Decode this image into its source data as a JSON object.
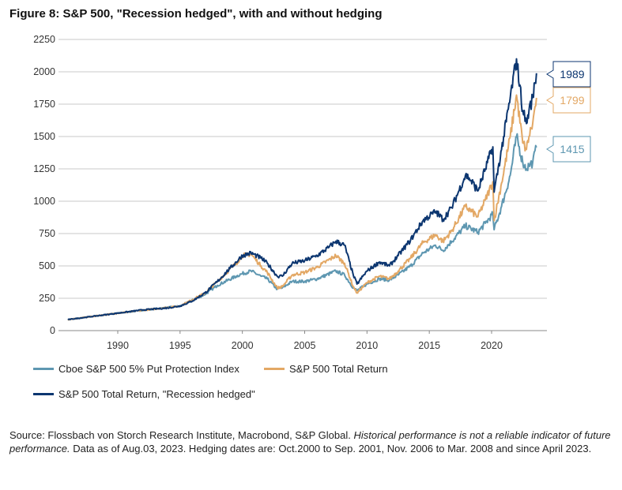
{
  "title": "Figure 8: S&P 500, \"Recession hedged\", with and without hedging",
  "chart_data": {
    "type": "line",
    "title": "Figure 8: S&P 500, \"Recession hedged\", with and without hedging",
    "xlabel": "",
    "ylabel": "",
    "xlim": [
      1986,
      2024.5
    ],
    "ylim": [
      0,
      2250
    ],
    "x_ticks": [
      "1990",
      "1995",
      "2000",
      "2005",
      "2010",
      "2015",
      "2020"
    ],
    "y_ticks": [
      "0",
      "250",
      "500",
      "750",
      "1000",
      "1250",
      "1500",
      "1750",
      "2000",
      "2250"
    ],
    "grid": "horizontal",
    "legend_position": "bottom",
    "series": [
      {
        "name": "S&P 500 Total Return, \"Recession hedged\"",
        "color": "#0c3670",
        "end_label": "1989",
        "points": [
          [
            1986,
            85
          ],
          [
            1988,
            110
          ],
          [
            1990,
            135
          ],
          [
            1992,
            160
          ],
          [
            1994,
            175
          ],
          [
            1995,
            190
          ],
          [
            1996,
            230
          ],
          [
            1997,
            290
          ],
          [
            1998,
            380
          ],
          [
            1999,
            480
          ],
          [
            2000,
            580
          ],
          [
            2000.7,
            600
          ],
          [
            2001.5,
            560
          ],
          [
            2002,
            520
          ],
          [
            2002.8,
            420
          ],
          [
            2003.2,
            420
          ],
          [
            2004,
            520
          ],
          [
            2005,
            540
          ],
          [
            2006,
            580
          ],
          [
            2006.9,
            640
          ],
          [
            2007.5,
            690
          ],
          [
            2008.2,
            660
          ],
          [
            2008.9,
            430
          ],
          [
            2009.2,
            360
          ],
          [
            2010,
            460
          ],
          [
            2011,
            530
          ],
          [
            2011.8,
            500
          ],
          [
            2012.5,
            580
          ],
          [
            2013.5,
            700
          ],
          [
            2014.5,
            850
          ],
          [
            2015.5,
            920
          ],
          [
            2016.1,
            860
          ],
          [
            2016.8,
            950
          ],
          [
            2017.9,
            1200
          ],
          [
            2018.2,
            1180
          ],
          [
            2018.9,
            1080
          ],
          [
            2019.5,
            1250
          ],
          [
            2020.1,
            1420
          ],
          [
            2020.2,
            1070
          ],
          [
            2020.8,
            1400
          ],
          [
            2021.5,
            1800
          ],
          [
            2022,
            2100
          ],
          [
            2022.5,
            1700
          ],
          [
            2022.8,
            1600
          ],
          [
            2023,
            1700
          ],
          [
            2023.3,
            1800
          ],
          [
            2023.6,
            1989
          ]
        ]
      },
      {
        "name": "S&P 500 Total Return",
        "color": "#e3a865",
        "end_label": "1799",
        "points": [
          [
            1986,
            85
          ],
          [
            1990,
            135
          ],
          [
            1995,
            190
          ],
          [
            1997,
            290
          ],
          [
            1998,
            380
          ],
          [
            1999.5,
            520
          ],
          [
            2000,
            580
          ],
          [
            2000.7,
            590
          ],
          [
            2001.5,
            500
          ],
          [
            2002,
            450
          ],
          [
            2002.8,
            330
          ],
          [
            2003.2,
            340
          ],
          [
            2004,
            430
          ],
          [
            2005,
            450
          ],
          [
            2006,
            490
          ],
          [
            2007.5,
            580
          ],
          [
            2008.2,
            520
          ],
          [
            2008.9,
            340
          ],
          [
            2009.2,
            290
          ],
          [
            2010,
            370
          ],
          [
            2011,
            420
          ],
          [
            2011.8,
            400
          ],
          [
            2012.5,
            460
          ],
          [
            2013.5,
            560
          ],
          [
            2014.5,
            680
          ],
          [
            2015.5,
            740
          ],
          [
            2016.1,
            690
          ],
          [
            2016.8,
            770
          ],
          [
            2017.9,
            960
          ],
          [
            2018.9,
            880
          ],
          [
            2019.5,
            1010
          ],
          [
            2020.1,
            1150
          ],
          [
            2020.2,
            850
          ],
          [
            2020.8,
            1140
          ],
          [
            2021.5,
            1500
          ],
          [
            2022,
            1820
          ],
          [
            2022.5,
            1450
          ],
          [
            2022.8,
            1400
          ],
          [
            2023,
            1500
          ],
          [
            2023.3,
            1600
          ],
          [
            2023.6,
            1799
          ]
        ]
      },
      {
        "name": "Cboe S&P 500 5% Put Protection Index",
        "color": "#5e97b1",
        "end_label": "1415",
        "points": [
          [
            1986,
            85
          ],
          [
            1990,
            135
          ],
          [
            1995,
            190
          ],
          [
            1997,
            280
          ],
          [
            1998,
            350
          ],
          [
            1999.5,
            420
          ],
          [
            2000,
            440
          ],
          [
            2000.7,
            460
          ],
          [
            2001.5,
            420
          ],
          [
            2002,
            400
          ],
          [
            2002.8,
            320
          ],
          [
            2003.2,
            330
          ],
          [
            2004,
            380
          ],
          [
            2005,
            380
          ],
          [
            2006,
            400
          ],
          [
            2007.5,
            460
          ],
          [
            2008.2,
            430
          ],
          [
            2008.9,
            330
          ],
          [
            2009.2,
            310
          ],
          [
            2010,
            360
          ],
          [
            2011,
            400
          ],
          [
            2011.8,
            390
          ],
          [
            2012.5,
            430
          ],
          [
            2013.5,
            500
          ],
          [
            2014.5,
            600
          ],
          [
            2015.5,
            660
          ],
          [
            2016.1,
            620
          ],
          [
            2016.8,
            690
          ],
          [
            2017.9,
            810
          ],
          [
            2018.9,
            760
          ],
          [
            2019.5,
            830
          ],
          [
            2020.1,
            900
          ],
          [
            2020.2,
            780
          ],
          [
            2020.8,
            960
          ],
          [
            2021.5,
            1200
          ],
          [
            2022,
            1500
          ],
          [
            2022.5,
            1300
          ],
          [
            2022.8,
            1250
          ],
          [
            2023,
            1280
          ],
          [
            2023.3,
            1300
          ],
          [
            2023.6,
            1415
          ]
        ]
      }
    ]
  },
  "legend": {
    "put_protection": "Cboe S&P 500 5% Put Protection Index",
    "total_return": "S&P 500 Total Return",
    "recession_hedged": "S&P 500 Total Return, \"Recession hedged\""
  },
  "source": {
    "prefix": "Source: Flossbach von Storch Research Institute, Macrobond, S&P Global. ",
    "italic": "Historical performance is not a reliable indicator of future performance.",
    "suffix": " Data as of Aug.03, 2023. Hedging dates are: Oct.2000 to Sep. 2001, Nov. 2006 to Mar. 2008 and since April 2023."
  }
}
